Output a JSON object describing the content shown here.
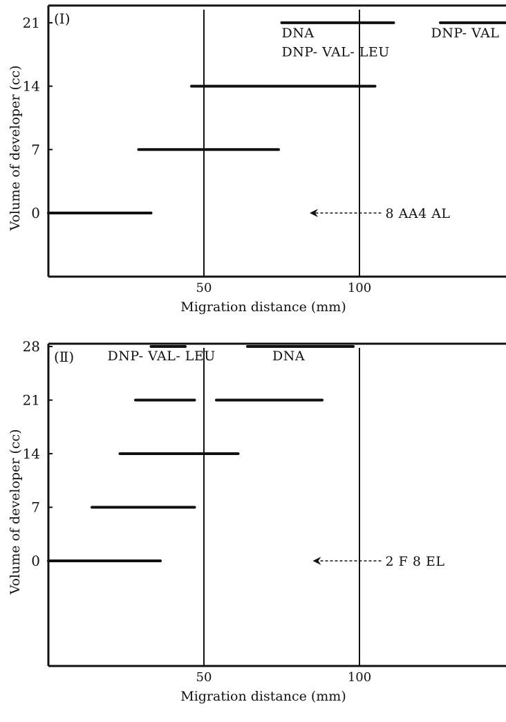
{
  "chart_data": [
    {
      "type": "range",
      "panel_label": "(Ⅰ)",
      "xlabel": "Migration distance (mm)",
      "ylabel": "Volume of developer (cc)",
      "xticks": [
        50,
        100
      ],
      "yticks": [
        0,
        7,
        14,
        21
      ],
      "xlim": [
        0,
        148
      ],
      "ylim": [
        -7,
        23
      ],
      "vertical_markers": [
        50,
        100
      ],
      "bands": [
        {
          "y": 0,
          "x": [
            0,
            33
          ]
        },
        {
          "y": 7,
          "x": [
            29,
            74
          ]
        },
        {
          "y": 14,
          "x": [
            46,
            105
          ]
        },
        {
          "y": 21,
          "x": [
            75,
            111
          ]
        },
        {
          "y": 21,
          "x": [
            126,
            148
          ]
        }
      ],
      "band_labels": [
        {
          "text": "DNA",
          "x": 75,
          "y": 19.4
        },
        {
          "text": "DNP- VAL- LEU",
          "x": 75,
          "y": 17.3
        },
        {
          "text": "DNP- VAL",
          "x": 123,
          "y": 19.4
        }
      ],
      "annotation": {
        "text": "8 AA4 AL",
        "x": 107,
        "y": 0,
        "arrow_to_x": 84
      }
    },
    {
      "type": "range",
      "panel_label": "(Ⅱ)",
      "xlabel": "Migration distance (mm)",
      "ylabel": "Volume of developer (cc)",
      "xticks": [
        50,
        100
      ],
      "yticks": [
        0,
        7,
        14,
        21,
        28
      ],
      "xlim": [
        0,
        148
      ],
      "ylim": [
        -7,
        30
      ],
      "vertical_markers": [
        50,
        100
      ],
      "bands": [
        {
          "y": 0,
          "x": [
            0,
            36
          ]
        },
        {
          "y": 7,
          "x": [
            14,
            47
          ]
        },
        {
          "y": 14,
          "x": [
            23,
            61
          ]
        },
        {
          "y": 21,
          "x": [
            28,
            47
          ]
        },
        {
          "y": 21,
          "x": [
            54,
            88
          ]
        },
        {
          "y": 28,
          "x": [
            33,
            44
          ]
        },
        {
          "y": 28,
          "x": [
            64,
            98
          ]
        }
      ],
      "band_labels": [
        {
          "text": "DNP- VAL- LEU",
          "x": 19,
          "y": 26.2
        },
        {
          "text": "DNA",
          "x": 72,
          "y": 26.2
        }
      ],
      "annotation": {
        "text": "2 F 8 EL",
        "x": 107,
        "y": 0,
        "arrow_to_x": 85
      }
    }
  ]
}
